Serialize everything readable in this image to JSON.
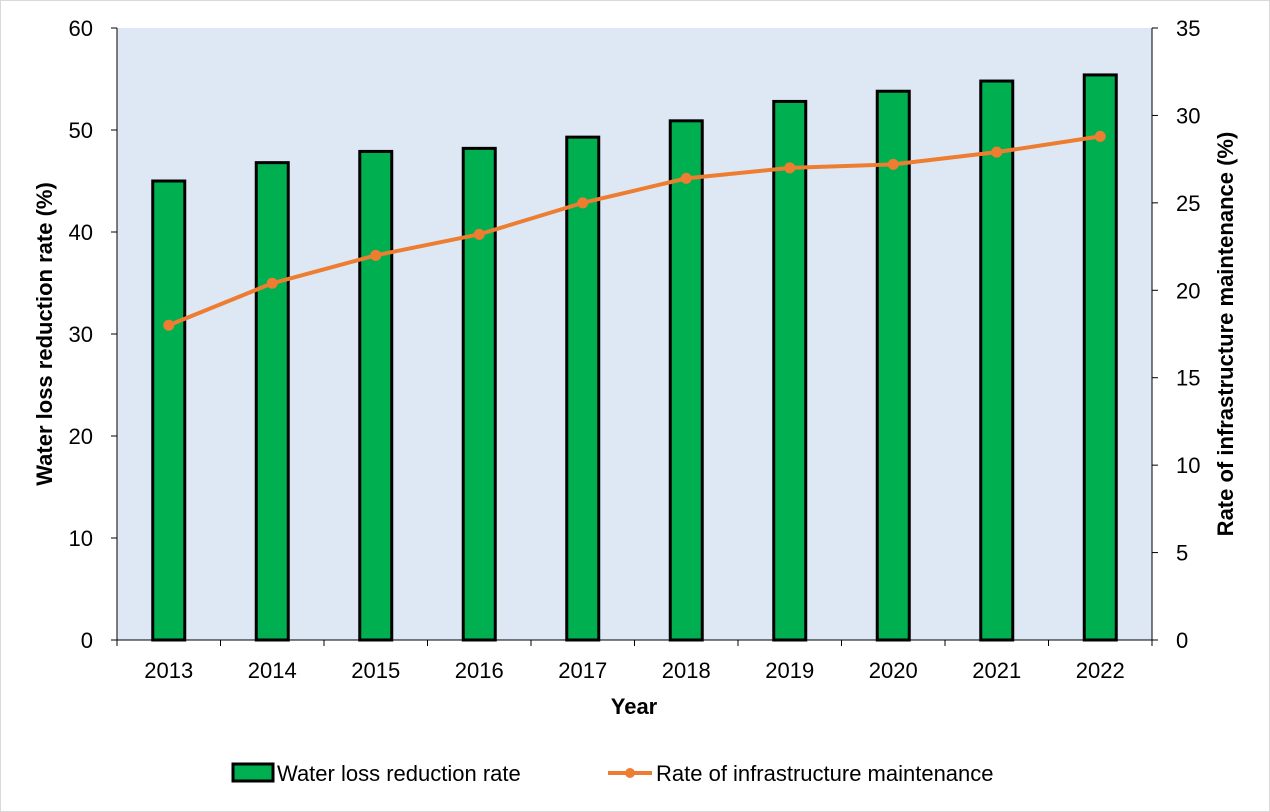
{
  "chart_data": {
    "type": "bar",
    "title": "",
    "categories": [
      "2013",
      "2014",
      "2015",
      "2016",
      "2017",
      "2018",
      "2019",
      "2020",
      "2021",
      "2022"
    ],
    "xlabel": "Year",
    "ylabel": "Water loss reduction rate (%)",
    "y2label": "Rate of infrastructure maintenance (%)",
    "ylim": [
      0,
      60
    ],
    "y2lim": [
      0,
      35
    ],
    "yticks": [
      0,
      10,
      20,
      30,
      40,
      50,
      60
    ],
    "y2ticks": [
      0,
      5,
      10,
      15,
      20,
      25,
      30,
      35
    ],
    "grid": false,
    "legend_position": "bottom",
    "series": [
      {
        "name": "Water loss reduction rate",
        "type": "bar",
        "axis": "left",
        "color": "#00b050",
        "values": [
          45.0,
          46.8,
          47.9,
          48.2,
          49.3,
          50.9,
          52.8,
          53.8,
          54.8,
          55.4
        ]
      },
      {
        "name": "Rate of infrastructure maintenance",
        "type": "line",
        "axis": "right",
        "color": "#ed7d31",
        "values": [
          18.0,
          20.4,
          22.0,
          23.2,
          25.0,
          26.4,
          27.0,
          27.2,
          27.9,
          28.8
        ]
      }
    ]
  },
  "colors": {
    "plot_background": "#dee8f4",
    "bar_fill": "#00b050",
    "bar_outline": "#000000",
    "line": "#ed7d31"
  }
}
